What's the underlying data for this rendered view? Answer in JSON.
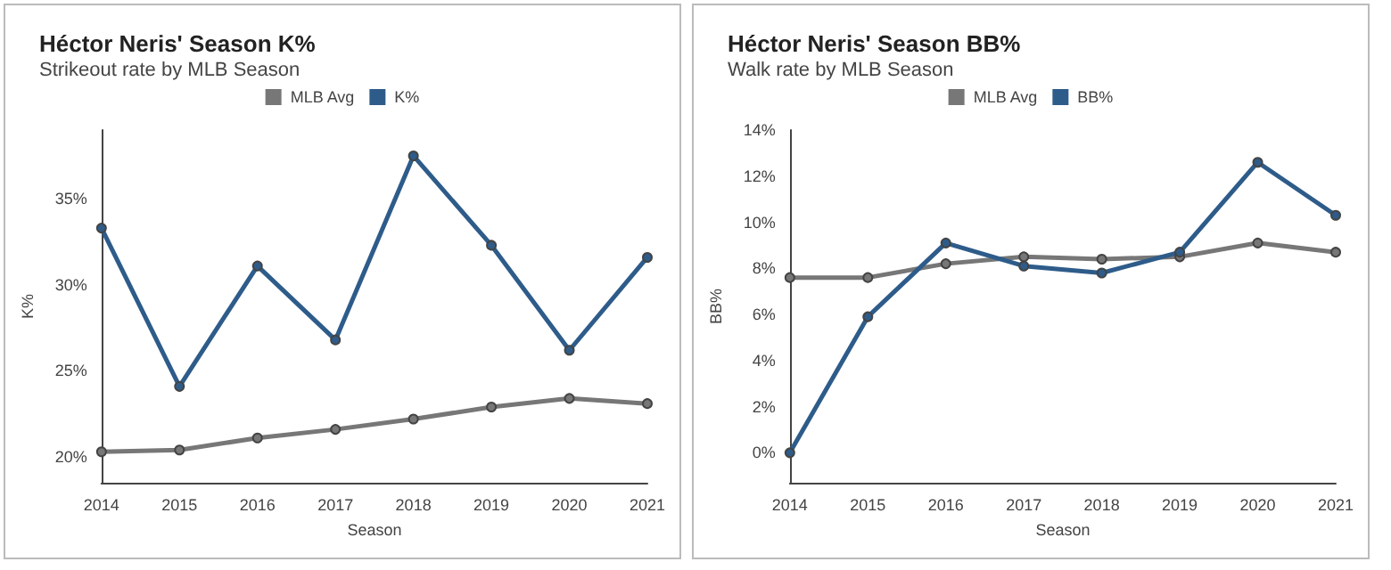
{
  "chart_data": [
    {
      "type": "line",
      "title": "Héctor Neris' Season K%",
      "subtitle": "Strikeout rate by MLB Season",
      "xlabel": "Season",
      "ylabel": "K%",
      "categories": [
        "2014",
        "2015",
        "2016",
        "2017",
        "2018",
        "2019",
        "2020",
        "2021"
      ],
      "series": [
        {
          "name": "MLB Avg",
          "color": "#777777",
          "values": [
            20.3,
            20.4,
            21.1,
            21.6,
            22.2,
            22.9,
            23.4,
            23.1
          ]
        },
        {
          "name": "K%",
          "color": "#2e5c8a",
          "values": [
            33.3,
            24.1,
            31.1,
            26.8,
            37.5,
            32.3,
            26.2,
            31.6
          ]
        }
      ],
      "ylim": [
        18.5,
        39
      ],
      "yticks": [
        {
          "value": 20,
          "label": "20%"
        },
        {
          "value": 25,
          "label": "25%"
        },
        {
          "value": 30,
          "label": "30%"
        },
        {
          "value": 35,
          "label": "35%"
        }
      ],
      "grid": false,
      "legend": "top",
      "marker": "circle",
      "line_style": "solid"
    },
    {
      "type": "line",
      "title": "Héctor Neris' Season BB%",
      "subtitle": "Walk rate by MLB Season",
      "xlabel": "Season",
      "ylabel": "BB%",
      "categories": [
        "2014",
        "2015",
        "2016",
        "2017",
        "2018",
        "2019",
        "2020",
        "2021"
      ],
      "series": [
        {
          "name": "MLB Avg",
          "color": "#777777",
          "values": [
            7.6,
            7.6,
            8.2,
            8.5,
            8.4,
            8.5,
            9.1,
            8.7
          ]
        },
        {
          "name": "BB%",
          "color": "#2e5c8a",
          "values": [
            0,
            5.9,
            9.1,
            8.1,
            7.8,
            8.7,
            12.6,
            10.3
          ]
        }
      ],
      "ylim": [
        -1.3,
        14
      ],
      "yticks": [
        {
          "value": 0,
          "label": "0%"
        },
        {
          "value": 2,
          "label": "2%"
        },
        {
          "value": 4,
          "label": "4%"
        },
        {
          "value": 6,
          "label": "6%"
        },
        {
          "value": 8,
          "label": "8%"
        },
        {
          "value": 10,
          "label": "10%"
        },
        {
          "value": 12,
          "label": "12%"
        },
        {
          "value": 14,
          "label": "14%"
        }
      ],
      "grid": false,
      "legend": "top",
      "marker": "circle",
      "line_style": "solid"
    }
  ]
}
